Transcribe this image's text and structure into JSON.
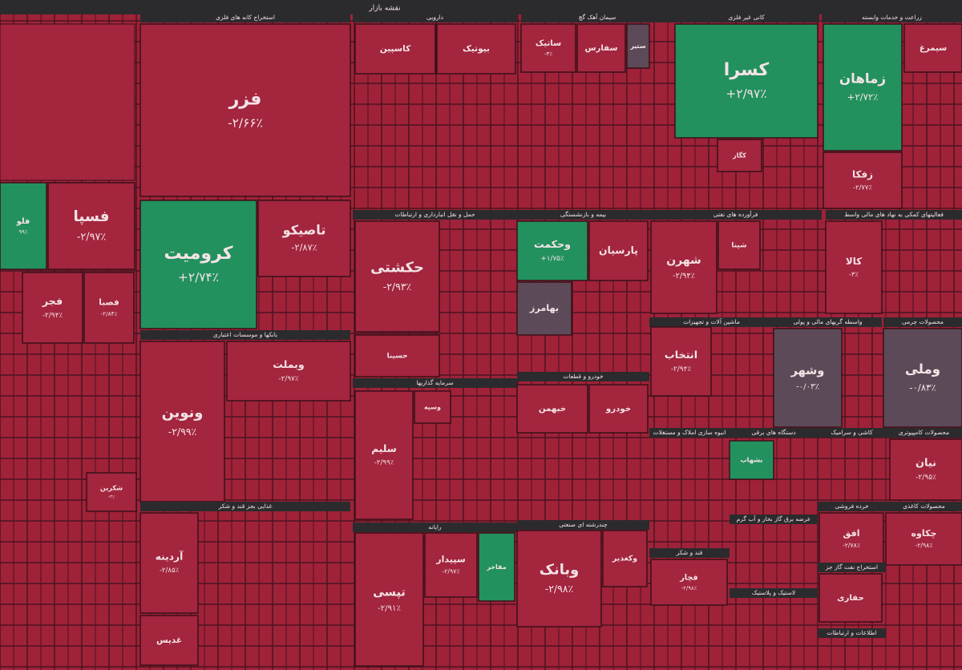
{
  "title": "نقشه بازار",
  "unsectioned_tiles": [
    {
      "symbol": "فلو",
      "change": "۹۹٪"
    },
    {
      "symbol": "فسپا",
      "change": "-۲/۹۷٪"
    },
    {
      "symbol": "فجر",
      "change": "-۲/۹۴٪"
    },
    {
      "symbol": "فصبا",
      "change": "-۲/۸۴٪"
    },
    {
      "symbol": "شکرین",
      "change": "-۳٪"
    }
  ],
  "sectors": [
    {
      "name": "استخراج کانه های فلزی",
      "tiles": [
        {
          "symbol": "فزر",
          "change": "-۲/۶۶٪"
        },
        {
          "symbol": "کرومیت",
          "change": "+۲/۷۴٪"
        },
        {
          "symbol": "تاصیکو",
          "change": "-۲/۸۷٪"
        }
      ]
    },
    {
      "name": "بانکها و موسسات اعتباری",
      "tiles": [
        {
          "symbol": "ونوین",
          "change": "-۲/۹۹٪"
        },
        {
          "symbol": "وبملت",
          "change": "-۲/۹۷٪"
        }
      ]
    },
    {
      "name": "دارویی",
      "tiles": [
        {
          "symbol": "کاسپین"
        },
        {
          "symbol": "بیوتیک"
        }
      ]
    },
    {
      "name": "سیمان آهک گچ",
      "tiles": [
        {
          "symbol": "ساتیک",
          "change": "-۳٪"
        },
        {
          "symbol": "سفارس"
        },
        {
          "symbol": "ستیر"
        }
      ]
    },
    {
      "name": "کانی غیر فلزی",
      "tiles": [
        {
          "symbol": "کسرا",
          "change": "+۲/۹۷٪"
        },
        {
          "symbol": "کگاز"
        }
      ]
    },
    {
      "name": "زراعت و خدمات وابسته",
      "tiles": [
        {
          "symbol": "زماهان",
          "change": "+۲/۷۲٪"
        },
        {
          "symbol": "زفکا",
          "change": "-۲/۷۷٪"
        },
        {
          "symbol": "سیمرغ"
        }
      ]
    },
    {
      "name": "حمل و نقل انبارداری و ارتباطات",
      "tiles": [
        {
          "symbol": "حکشتی",
          "change": "-۲/۹۳٪"
        },
        {
          "symbol": "حسینا"
        }
      ]
    },
    {
      "name": "بیمه و بازنشستگی",
      "tiles": [
        {
          "symbol": "وحکمت",
          "change": "+۱/۷۵٪"
        },
        {
          "symbol": "پارسیان"
        },
        {
          "symbol": "بهامرز"
        }
      ]
    },
    {
      "name": "فرآورده های نفتی",
      "tiles": [
        {
          "symbol": "شهرن",
          "change": "-۲/۹۴٪"
        },
        {
          "symbol": "شپنا"
        }
      ]
    },
    {
      "name": "فعالیتهای کمکی به نهاد های مالی واسط",
      "tiles": [
        {
          "symbol": "کالا",
          "change": "-۳٪"
        }
      ]
    },
    {
      "name": "ماشین آلات و تجهیزات",
      "tiles": [
        {
          "symbol": "انتخاب",
          "change": "-۲/۹۴٪"
        }
      ]
    },
    {
      "name": "واسطه گریهای مالی و پولی",
      "tiles": [
        {
          "symbol": "وشهر",
          "change": "-۰/۰۳٪"
        }
      ]
    },
    {
      "name": "محصولات چرمی",
      "tiles": [
        {
          "symbol": "وملی",
          "change": "-۰/۸۳٪"
        }
      ]
    },
    {
      "name": "سرمایه گذاریها",
      "tiles": [
        {
          "symbol": "سلیم",
          "change": "-۲/۹۹٪"
        },
        {
          "symbol": "وسپه"
        }
      ]
    },
    {
      "name": "خودرو و قطعات",
      "tiles": [
        {
          "symbol": "خبهمن"
        },
        {
          "symbol": "خودرو"
        }
      ]
    },
    {
      "name": "رایانه",
      "tiles": [
        {
          "symbol": "تپسی",
          "change": "-۲/۹۱٪"
        },
        {
          "symbol": "سپیدار",
          "change": "-۲/۹۷٪"
        },
        {
          "symbol": "مفاخر"
        }
      ]
    },
    {
      "name": "چندرشته ای صنعتی",
      "tiles": [
        {
          "symbol": "وبانک",
          "change": "-۲/۹۸٪"
        },
        {
          "symbol": "وکغدیر"
        }
      ]
    },
    {
      "name": "غذایی بجز قند و شکر",
      "tiles": [
        {
          "symbol": "آردینه",
          "change": "-۲/۸۵٪"
        },
        {
          "symbol": "غدیس"
        }
      ]
    },
    {
      "name": "انبوه سازی املاک و مستغلات",
      "tiles": []
    },
    {
      "name": "دستگاه های برقی",
      "tiles": [
        {
          "symbol": "بشهاب"
        }
      ]
    },
    {
      "name": "کاشی و سرامیک",
      "tiles": []
    },
    {
      "name": "محصولات کامپیوتری",
      "tiles": [
        {
          "symbol": "نیان",
          "change": "-۲/۹۵٪"
        }
      ]
    },
    {
      "name": "خرده فروشی",
      "tiles": [
        {
          "symbol": "افق",
          "change": "-۲/۷۸٪"
        }
      ]
    },
    {
      "name": "محصولات کاغذی",
      "tiles": [
        {
          "symbol": "چکاوه",
          "change": "-۲/۹۸٪"
        }
      ]
    },
    {
      "name": "عرضه برق گاز بخار و آب گرم",
      "tiles": []
    },
    {
      "name": "قند و شکر",
      "tiles": [
        {
          "symbol": "قچار",
          "change": "-۲/۹۸٪"
        }
      ]
    },
    {
      "name": "استخراج نفت گاز جز",
      "tiles": [
        {
          "symbol": "حفاری"
        }
      ]
    },
    {
      "name": "لاستیک و پلاستیک",
      "tiles": []
    },
    {
      "name": "اطلاعات و ارتباطات",
      "tiles": []
    }
  ]
}
